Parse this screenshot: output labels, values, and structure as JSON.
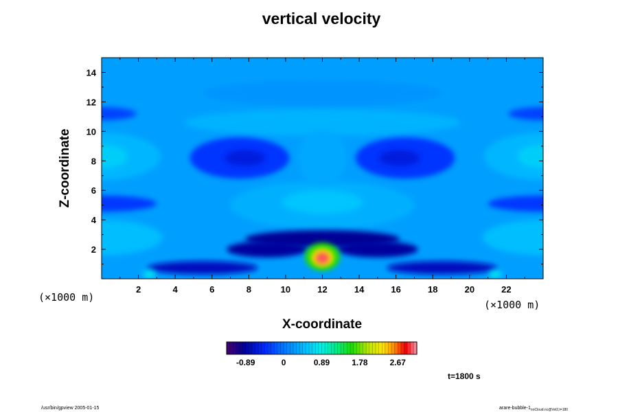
{
  "title": "vertical velocity",
  "chart_data": {
    "type": "heatmap",
    "title": "vertical velocity",
    "xlabel": "X-coordinate",
    "ylabel": "Z-coordinate",
    "x_unit": "(×1000 m)",
    "y_unit": "(×1000 m)",
    "xlim": [
      0,
      24
    ],
    "ylim": [
      0,
      15
    ],
    "x_ticks": [
      2,
      4,
      6,
      8,
      10,
      12,
      14,
      16,
      18,
      20,
      22
    ],
    "y_ticks": [
      2,
      4,
      6,
      8,
      10,
      12,
      14
    ],
    "colorbar": {
      "vmin": -1.335,
      "vmax": 3.115,
      "ticks": [
        -0.89,
        0,
        0.89,
        1.78,
        2.67
      ],
      "tick_labels": [
        "-0.89",
        "0",
        "0.89",
        "1.78",
        "2.67"
      ],
      "colormap": "rainbow"
    },
    "features": [
      {
        "x": 12,
        "z": 1.4,
        "value": 3.0
      },
      {
        "x": 12,
        "z": 2.6,
        "value": -0.9
      },
      {
        "x": 7.5,
        "z": 8.2,
        "value": -0.55
      },
      {
        "x": 16.5,
        "z": 8.2,
        "value": -0.55
      },
      {
        "x": 0,
        "z": 8.3,
        "value": 0.5
      },
      {
        "x": 24,
        "z": 8.3,
        "value": 0.5
      },
      {
        "x": 12,
        "z": 4.9,
        "value": 0.45
      }
    ]
  },
  "time_label": "t=1800 s",
  "footer_left": "/usr/bin/gpview 2005-01-15",
  "footer_right_main": "arare-bubble-1",
  "footer_right_sub": "noCloud.nc@Vel2,t=180"
}
